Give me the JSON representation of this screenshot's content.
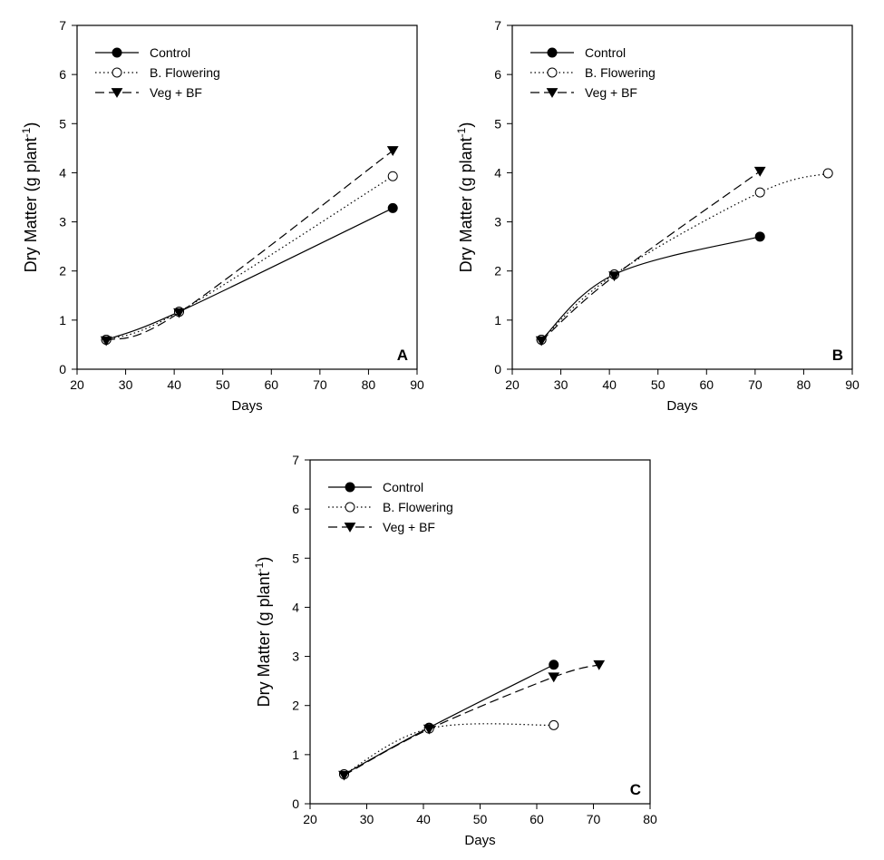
{
  "chart_data": [
    {
      "panel_label": "A",
      "type": "line",
      "xlabel": "Days",
      "ylabel": "Dry Matter (g plant",
      "ylabel_sup": "-1",
      "ylabel_close": ")",
      "xlim": [
        20,
        90
      ],
      "ylim": [
        0,
        7
      ],
      "xticks": [
        20,
        30,
        40,
        50,
        60,
        70,
        80,
        90
      ],
      "yticks": [
        0,
        1,
        2,
        3,
        4,
        5,
        6,
        7
      ],
      "legend_position": "top-left",
      "grid": false,
      "series": [
        {
          "name": "Control",
          "marker": "filled-circle",
          "line": "solid",
          "x": [
            26,
            41,
            85
          ],
          "y": [
            0.6,
            1.17,
            3.28
          ]
        },
        {
          "name": "B. Flowering",
          "marker": "open-circle",
          "line": "dotted",
          "x": [
            26,
            41,
            85
          ],
          "y": [
            0.6,
            1.17,
            3.93
          ]
        },
        {
          "name": "Veg + BF",
          "marker": "filled-triangle-down",
          "line": "dashed",
          "x": [
            26,
            41,
            85
          ],
          "y": [
            0.58,
            1.15,
            4.45
          ]
        }
      ]
    },
    {
      "panel_label": "B",
      "type": "line",
      "xlabel": "Days",
      "ylabel": "Dry Matter (g plant",
      "ylabel_sup": "-1",
      "ylabel_close": ")",
      "xlim": [
        20,
        90
      ],
      "ylim": [
        0,
        7
      ],
      "xticks": [
        20,
        30,
        40,
        50,
        60,
        70,
        80,
        90
      ],
      "yticks": [
        0,
        1,
        2,
        3,
        4,
        5,
        6,
        7
      ],
      "legend_position": "top-left",
      "grid": false,
      "series": [
        {
          "name": "Control",
          "marker": "filled-circle",
          "line": "solid",
          "x": [
            26,
            41,
            71
          ],
          "y": [
            0.6,
            1.93,
            2.7
          ]
        },
        {
          "name": "B. Flowering",
          "marker": "open-circle",
          "line": "dotted",
          "x": [
            26,
            41,
            71,
            85
          ],
          "y": [
            0.6,
            1.93,
            3.6,
            3.99
          ]
        },
        {
          "name": "Veg + BF",
          "marker": "filled-triangle-down",
          "line": "dashed",
          "x": [
            26,
            41,
            71
          ],
          "y": [
            0.58,
            1.9,
            4.03
          ]
        }
      ]
    },
    {
      "panel_label": "C",
      "type": "line",
      "xlabel": "Days",
      "ylabel": "Dry Matter (g plant",
      "ylabel_sup": "-1",
      "ylabel_close": ")",
      "xlim": [
        20,
        80
      ],
      "ylim": [
        0,
        7
      ],
      "xticks": [
        20,
        30,
        40,
        50,
        60,
        70,
        80
      ],
      "yticks": [
        0,
        1,
        2,
        3,
        4,
        5,
        6,
        7
      ],
      "legend_position": "top-left",
      "grid": false,
      "series": [
        {
          "name": "Control",
          "marker": "filled-circle",
          "line": "solid",
          "x": [
            26,
            41,
            63
          ],
          "y": [
            0.6,
            1.55,
            2.83
          ]
        },
        {
          "name": "B. Flowering",
          "marker": "open-circle",
          "line": "dotted",
          "x": [
            26,
            41,
            63
          ],
          "y": [
            0.6,
            1.53,
            1.6
          ]
        },
        {
          "name": "Veg + BF",
          "marker": "filled-triangle-down",
          "line": "dashed",
          "x": [
            26,
            41,
            63,
            71
          ],
          "y": [
            0.58,
            1.52,
            2.58,
            2.83
          ]
        }
      ]
    }
  ]
}
